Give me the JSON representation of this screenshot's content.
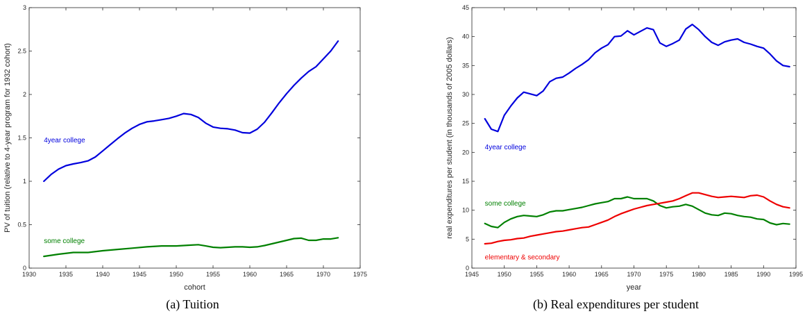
{
  "chart_data": [
    {
      "type": "line",
      "xlabel": "cohort",
      "ylabel": "PV of tuition (relative to 4-year program for 1932 cohort)",
      "xlim": [
        1930,
        1975
      ],
      "ylim": [
        0,
        3
      ],
      "xticks": [
        "1930",
        "1935",
        "1940",
        "1945",
        "1950",
        "1955",
        "1960",
        "1965",
        "1970",
        "1975"
      ],
      "yticks": [
        "0",
        "0.5",
        "1",
        "1.5",
        "2",
        "2.5",
        "3"
      ],
      "grid": false,
      "series": [
        {
          "name": "4year college",
          "color": "#0000dd",
          "x": [
            1932,
            1933,
            1934,
            1935,
            1936,
            1937,
            1938,
            1939,
            1940,
            1941,
            1942,
            1943,
            1944,
            1945,
            1946,
            1947,
            1948,
            1949,
            1950,
            1951,
            1952,
            1953,
            1954,
            1955,
            1956,
            1957,
            1958,
            1959,
            1960,
            1961,
            1962,
            1963,
            1964,
            1965,
            1966,
            1967,
            1968,
            1969,
            1970,
            1971,
            1972
          ],
          "y": [
            1.0,
            1.08,
            1.14,
            1.18,
            1.2,
            1.215,
            1.235,
            1.28,
            1.35,
            1.42,
            1.49,
            1.555,
            1.61,
            1.655,
            1.685,
            1.695,
            1.71,
            1.725,
            1.75,
            1.78,
            1.77,
            1.735,
            1.67,
            1.625,
            1.61,
            1.605,
            1.59,
            1.56,
            1.555,
            1.6,
            1.68,
            1.79,
            1.905,
            2.01,
            2.105,
            2.19,
            2.265,
            2.32,
            2.41,
            2.5,
            2.615
          ]
        },
        {
          "name": "some college",
          "color": "#008000",
          "x": [
            1932,
            1934,
            1936,
            1938,
            1940,
            1942,
            1944,
            1946,
            1948,
            1950,
            1952,
            1953,
            1954,
            1955,
            1956,
            1957,
            1958,
            1959,
            1960,
            1961,
            1962,
            1963,
            1964,
            1965,
            1966,
            1967,
            1968,
            1969,
            1970,
            1971,
            1972
          ],
          "y": [
            0.135,
            0.16,
            0.18,
            0.18,
            0.2,
            0.215,
            0.23,
            0.245,
            0.255,
            0.255,
            0.265,
            0.27,
            0.255,
            0.24,
            0.235,
            0.24,
            0.245,
            0.245,
            0.24,
            0.245,
            0.26,
            0.28,
            0.3,
            0.32,
            0.34,
            0.345,
            0.32,
            0.32,
            0.335,
            0.335,
            0.35
          ]
        }
      ],
      "annotations": [
        {
          "text": "4year college",
          "x": 1932,
          "y": 1.45,
          "color": "#0000dd"
        },
        {
          "text": "some college",
          "x": 1932,
          "y": 0.29,
          "color": "#008000"
        }
      ]
    },
    {
      "type": "line",
      "xlabel": "year",
      "ylabel": "real expenditures per student (in thousands of 2005 dollars)",
      "xlim": [
        1945,
        1995
      ],
      "ylim": [
        0,
        45
      ],
      "xticks": [
        "1945",
        "1950",
        "1955",
        "1960",
        "1965",
        "1970",
        "1975",
        "1980",
        "1985",
        "1990",
        "1995"
      ],
      "yticks": [
        "0",
        "5",
        "10",
        "15",
        "20",
        "25",
        "30",
        "35",
        "40",
        "45"
      ],
      "grid": false,
      "series": [
        {
          "name": "4year college",
          "color": "#0000dd",
          "x": [
            1947,
            1948,
            1949,
            1950,
            1951,
            1952,
            1953,
            1954,
            1955,
            1956,
            1957,
            1958,
            1959,
            1960,
            1961,
            1962,
            1963,
            1964,
            1965,
            1966,
            1967,
            1968,
            1969,
            1970,
            1971,
            1972,
            1973,
            1974,
            1975,
            1976,
            1977,
            1978,
            1979,
            1980,
            1981,
            1982,
            1983,
            1984,
            1985,
            1986,
            1987,
            1988,
            1989,
            1990,
            1991,
            1992,
            1993,
            1994
          ],
          "y": [
            25.8,
            24.0,
            23.6,
            26.4,
            28.0,
            29.4,
            30.4,
            30.1,
            29.8,
            30.6,
            32.2,
            32.8,
            33.0,
            33.7,
            34.5,
            35.2,
            36.0,
            37.2,
            38.0,
            38.6,
            40.0,
            40.1,
            41.0,
            40.3,
            40.9,
            41.5,
            41.2,
            38.9,
            38.3,
            38.8,
            39.4,
            41.3,
            42.1,
            41.2,
            40.0,
            39.0,
            38.5,
            39.1,
            39.4,
            39.6,
            39.0,
            38.7,
            38.3,
            38.0,
            37.0,
            35.8,
            35.0,
            34.8
          ]
        },
        {
          "name": "some college",
          "color": "#008000",
          "x": [
            1947,
            1948,
            1949,
            1950,
            1951,
            1952,
            1953,
            1954,
            1955,
            1956,
            1957,
            1958,
            1959,
            1960,
            1961,
            1962,
            1963,
            1964,
            1965,
            1966,
            1967,
            1968,
            1969,
            1970,
            1971,
            1972,
            1973,
            1974,
            1975,
            1976,
            1977,
            1978,
            1979,
            1980,
            1981,
            1982,
            1983,
            1984,
            1985,
            1986,
            1987,
            1988,
            1989,
            1990,
            1991,
            1992,
            1993,
            1994
          ],
          "y": [
            7.7,
            7.2,
            7.0,
            7.9,
            8.5,
            8.9,
            9.1,
            9.0,
            8.9,
            9.2,
            9.7,
            9.9,
            9.9,
            10.1,
            10.3,
            10.5,
            10.8,
            11.1,
            11.3,
            11.5,
            12.0,
            12.0,
            12.3,
            12.0,
            12.0,
            12.0,
            11.6,
            10.8,
            10.4,
            10.6,
            10.7,
            11.0,
            10.7,
            10.1,
            9.5,
            9.2,
            9.1,
            9.5,
            9.4,
            9.1,
            8.9,
            8.8,
            8.5,
            8.4,
            7.8,
            7.5,
            7.7,
            7.6
          ]
        },
        {
          "name": "elementary & secondary",
          "color": "#ee0000",
          "x": [
            1947,
            1948,
            1949,
            1950,
            1951,
            1952,
            1953,
            1954,
            1955,
            1956,
            1957,
            1958,
            1959,
            1960,
            1961,
            1962,
            1963,
            1964,
            1965,
            1966,
            1967,
            1968,
            1969,
            1970,
            1971,
            1972,
            1973,
            1974,
            1975,
            1976,
            1977,
            1978,
            1979,
            1980,
            1981,
            1982,
            1983,
            1984,
            1985,
            1986,
            1987,
            1988,
            1989,
            1990,
            1991,
            1992,
            1993,
            1994
          ],
          "y": [
            4.2,
            4.3,
            4.6,
            4.8,
            4.9,
            5.1,
            5.2,
            5.5,
            5.7,
            5.9,
            6.1,
            6.3,
            6.4,
            6.6,
            6.8,
            7.0,
            7.1,
            7.5,
            7.9,
            8.3,
            8.9,
            9.4,
            9.8,
            10.2,
            10.5,
            10.8,
            11.0,
            11.2,
            11.4,
            11.6,
            12.0,
            12.5,
            13.0,
            13.0,
            12.7,
            12.4,
            12.2,
            12.3,
            12.4,
            12.3,
            12.2,
            12.5,
            12.6,
            12.3,
            11.6,
            11.0,
            10.6,
            10.4
          ]
        }
      ],
      "annotations": [
        {
          "text": "4year college",
          "x": 1947,
          "y": 20.5,
          "color": "#0000dd"
        },
        {
          "text": "some college",
          "x": 1947,
          "y": 10.8,
          "color": "#008000"
        },
        {
          "text": "elementary & secondary",
          "x": 1947,
          "y": 1.5,
          "color": "#ee0000"
        }
      ]
    }
  ],
  "captions": [
    "(a) Tuition",
    "(b) Real expenditures per student"
  ]
}
